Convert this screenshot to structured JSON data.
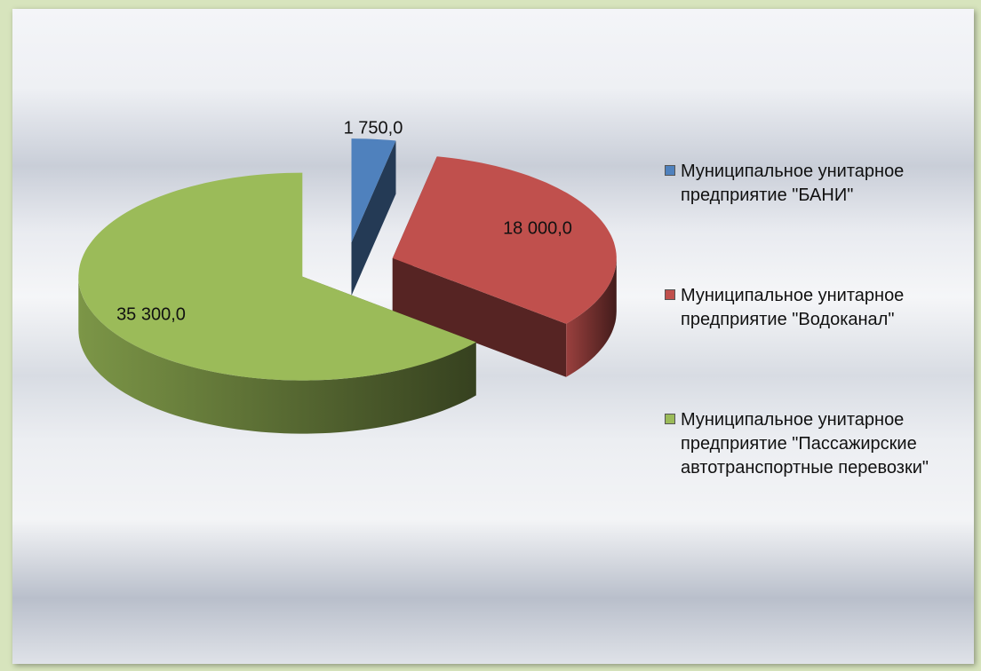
{
  "chart_data": {
    "type": "pie",
    "style": "3d-exploded",
    "categories": [
      "Муниципальное унитарное предприятие \"БАНИ\"",
      "Муниципальное унитарное предприятие \"Водоканал\"",
      "Муниципальное унитарное предприятие \"Пассажирские автотранспортные перевозки\""
    ],
    "values": [
      1750,
      18000,
      35300
    ],
    "value_labels": [
      "1 750,0",
      "18 000,0",
      "35 300,0"
    ],
    "colors": [
      "#4f81bd",
      "#c0504d",
      "#9bbb59"
    ],
    "legend": "right"
  }
}
